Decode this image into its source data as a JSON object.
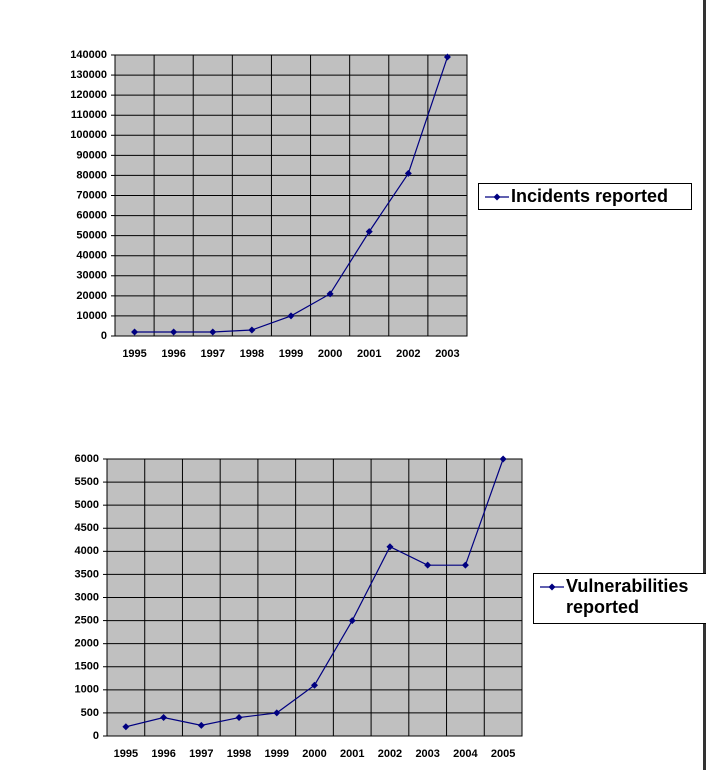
{
  "chart_data": [
    {
      "type": "line",
      "categories": [
        "1995",
        "1996",
        "1997",
        "1998",
        "1999",
        "2000",
        "2001",
        "2002",
        "2003"
      ],
      "series": [
        {
          "name": "Incidents reported",
          "color": "#000080",
          "values": [
            2000,
            2000,
            2000,
            3000,
            10000,
            21000,
            52000,
            81000,
            139000
          ]
        }
      ],
      "ylim": [
        0,
        140000
      ],
      "yticks": [
        0,
        10000,
        20000,
        30000,
        40000,
        50000,
        60000,
        70000,
        80000,
        90000,
        100000,
        110000,
        120000,
        130000,
        140000
      ],
      "grid": true,
      "legend": "right"
    },
    {
      "type": "line",
      "categories": [
        "1995",
        "1996",
        "1997",
        "1998",
        "1999",
        "2000",
        "2001",
        "2002",
        "2003",
        "2004",
        "2005"
      ],
      "series": [
        {
          "name": "Vulnerabilities reported",
          "color": "#000080",
          "values": [
            200,
            400,
            230,
            400,
            500,
            1100,
            2500,
            4100,
            3700,
            3700,
            6000
          ]
        }
      ],
      "ylim": [
        0,
        6000
      ],
      "yticks": [
        0,
        500,
        1000,
        1500,
        2000,
        2500,
        3000,
        3500,
        4000,
        4500,
        5000,
        5500,
        6000
      ],
      "grid": true,
      "legend": "right"
    }
  ]
}
